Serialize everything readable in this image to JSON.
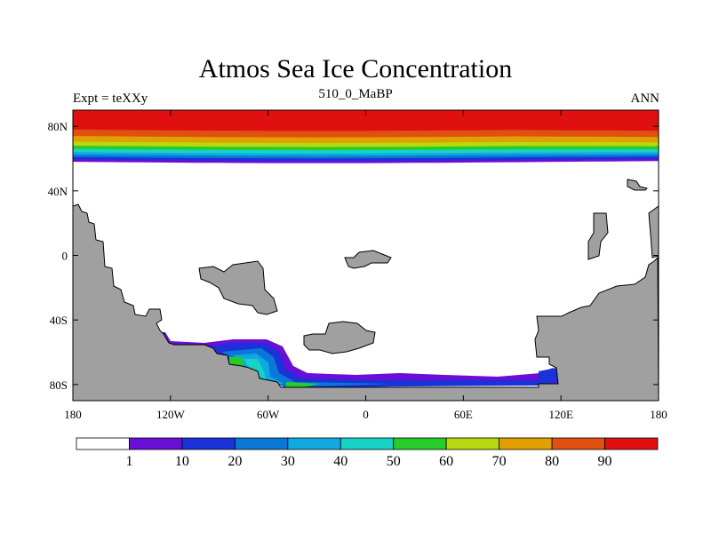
{
  "chart_data": {
    "type": "heatmap",
    "title": "Atmos Sea Ice Concentration",
    "subtitle_left": "Expt = teXXy",
    "subtitle_center": "510_0_MaBP",
    "subtitle_right": "ANN",
    "xlabel": "",
    "ylabel": "",
    "x_range_deg": [
      -180,
      180
    ],
    "y_range_deg": [
      -90,
      90
    ],
    "x_ticks": [
      {
        "value": -180,
        "label": "180"
      },
      {
        "value": -120,
        "label": "120W"
      },
      {
        "value": -60,
        "label": "60W"
      },
      {
        "value": 0,
        "label": "0"
      },
      {
        "value": 60,
        "label": "60E"
      },
      {
        "value": 120,
        "label": "120E"
      },
      {
        "value": 180,
        "label": "180"
      }
    ],
    "y_ticks": [
      {
        "value": 80,
        "label": "80N"
      },
      {
        "value": 40,
        "label": "40N"
      },
      {
        "value": 0,
        "label": "0"
      },
      {
        "value": -40,
        "label": "40S"
      },
      {
        "value": -80,
        "label": "80S"
      }
    ],
    "colorbar": {
      "labels": [
        "1",
        "10",
        "20",
        "30",
        "40",
        "50",
        "60",
        "70",
        "80",
        "90"
      ],
      "colors": [
        "#ffffff",
        "#6a0fd6",
        "#1a32d8",
        "#0a78d8",
        "#10a8e0",
        "#18d2c8",
        "#28cc28",
        "#b8d810",
        "#e0a000",
        "#e05010",
        "#e01010"
      ]
    },
    "north_polar_ice": {
      "edge_latitude_deg": 58,
      "bands": [
        {
          "min_concentration": 90,
          "from_lat": 78
        },
        {
          "min_concentration": 80,
          "from_lat": 74
        },
        {
          "min_concentration": 70,
          "from_lat": 70.5
        },
        {
          "min_concentration": 60,
          "from_lat": 68
        },
        {
          "min_concentration": 50,
          "from_lat": 66
        },
        {
          "min_concentration": 40,
          "from_lat": 64
        },
        {
          "min_concentration": 30,
          "from_lat": 62.5
        },
        {
          "min_concentration": 20,
          "from_lat": 61
        },
        {
          "min_concentration": 10,
          "from_lat": 59.5
        },
        {
          "min_concentration": 1,
          "from_lat": 58
        }
      ]
    },
    "southern_ice": {
      "region": "margins of southern continent, approx. 140W to 120E, 55S to 82S",
      "max_concentration_band": 60
    },
    "land_color": "#a0a0a0"
  }
}
